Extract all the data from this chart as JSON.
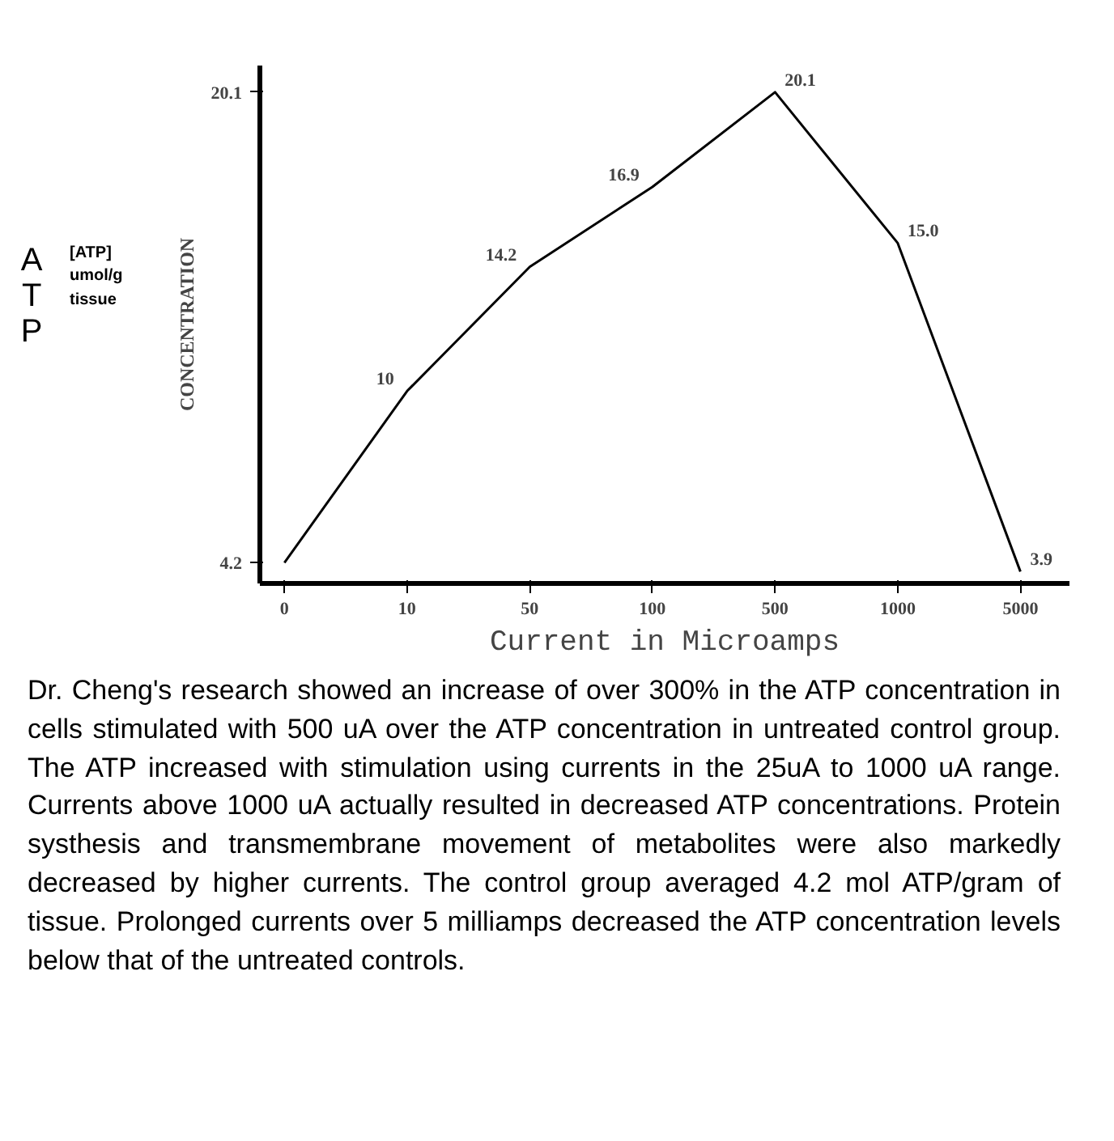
{
  "chart_data": {
    "type": "line",
    "xlabel": "Current in Microamps",
    "ylabel": "CONCENTRATION",
    "categories": [
      "0",
      "10",
      "50",
      "100",
      "500",
      "1000",
      "5000"
    ],
    "values": [
      4.2,
      10,
      14.2,
      16.9,
      20.1,
      15.0,
      3.9
    ],
    "value_labels": [
      null,
      "10",
      "14.2",
      "16.9",
      "20.1",
      "15.0",
      "3.9"
    ],
    "color": "#000000",
    "ylim": [
      3.5,
      21
    ],
    "yticks": [
      4.2,
      20.1
    ],
    "grid": false,
    "marker": "none",
    "line_style": "solid",
    "annotations": [
      "ATP",
      "[ATP] umol/g tissue",
      "Dr. Cheng's research showed an increase of over 300% in the ATP concentration in cells stimulated with 500 uA over the ATP concentration in untreated control group. The ATP increased with stimulation using currents in the 25uA to 1000 uA range. Currents above 1000 uA actually resulted in decreased ATP concentrations. Protein systhesis and transmembrane movement of metabolites were also markedly decreased by higher currents. The control group averaged 4.2 mol ATP/gram of tissue. Prolonged currents over 5 milliamps decreased the ATP concentration levels below that of the untreated controls."
    ]
  }
}
